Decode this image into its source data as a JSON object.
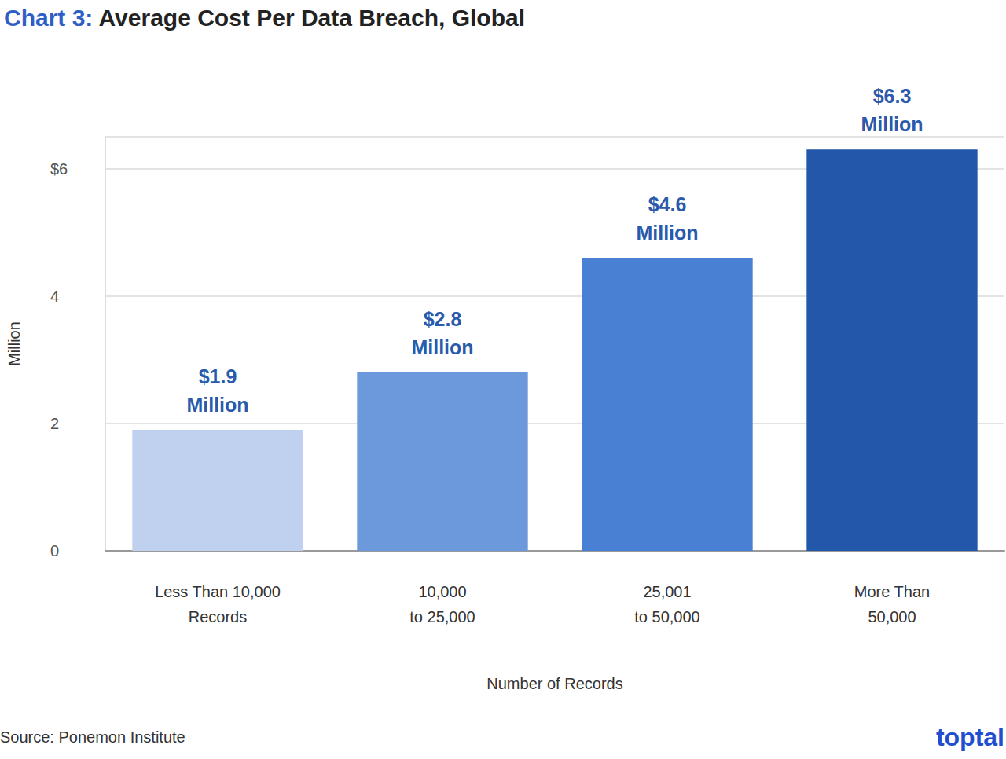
{
  "chart_data": {
    "type": "bar",
    "title": "Chart 3: Average Cost Per Data Breach, Global",
    "categories": [
      "Less Than 10,000\nRecords",
      "10,000\nto 25,000",
      "25,001\nto 50,000",
      "More Than\n50,000"
    ],
    "values": [
      1.9,
      2.8,
      4.6,
      6.3
    ],
    "value_labels": [
      "$1.9\nMillion",
      "$2.8\nMillion",
      "$4.6\nMillion",
      "$6.3\nMillion"
    ],
    "colors": [
      "#bfd1ef",
      "#6b99db",
      "#4a80d3",
      "#2357aa"
    ],
    "x_label": "Number of Records",
    "y_label": "Million",
    "ylim": [
      0,
      6.5
    ],
    "yticks": [
      0,
      2,
      4,
      {
        "value": 6,
        "label": "$6"
      }
    ],
    "grid": true,
    "data_labels": true,
    "annotations": [
      "Source: Ponemon Institute",
      "toptal"
    ]
  }
}
